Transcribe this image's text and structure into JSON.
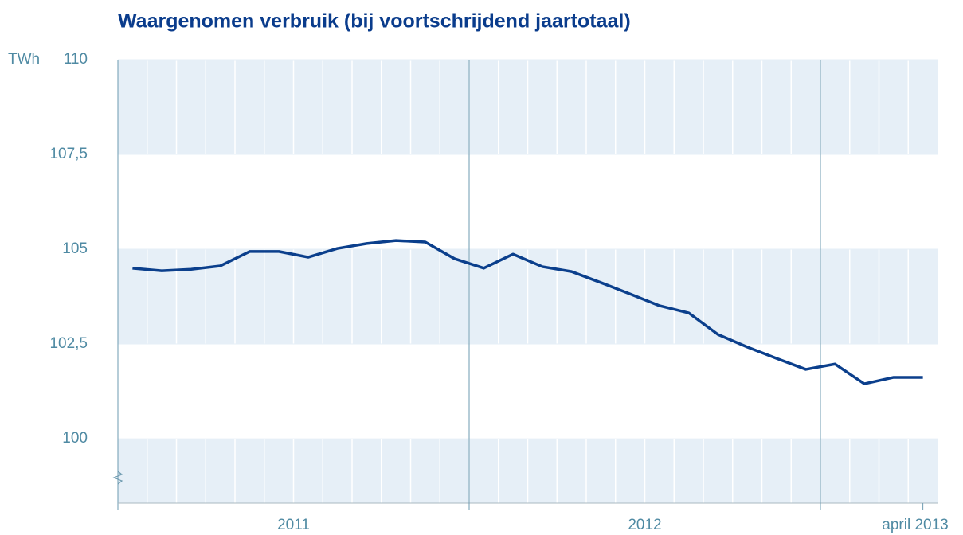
{
  "chart_data": {
    "type": "line",
    "title": "Waargenomen verbruik (bij voortschrijdend jaartotaal)",
    "y_unit": "TWh",
    "categories": [
      null,
      null,
      null,
      null,
      null,
      null,
      null,
      null,
      null,
      null,
      null,
      null,
      null,
      null,
      null,
      null,
      null,
      null,
      null,
      null,
      null,
      null,
      null,
      null,
      null,
      null,
      null,
      "april 2013"
    ],
    "groups": [
      {
        "label": "2011",
        "size": 12
      },
      {
        "label": "2012",
        "size": 12
      },
      {
        "label": null,
        "size": 4
      }
    ],
    "series": [
      {
        "name": null,
        "color": "#0b3f8c",
        "values": [
          104.5,
          104.43,
          104.47,
          104.56,
          104.94,
          104.94,
          104.79,
          105.02,
          105.15,
          105.23,
          105.19,
          104.75,
          104.5,
          104.87,
          104.54,
          104.41,
          104.12,
          103.82,
          103.51,
          103.32,
          102.75,
          102.42,
          102.12,
          101.83,
          101.97,
          101.45,
          101.62,
          101.62
        ]
      }
    ],
    "ylim": [
      98.3,
      110
    ],
    "yticks": [
      100,
      {
        "value": 102.5,
        "label": "102,5"
      },
      105,
      {
        "value": 107.5,
        "label": "107,5"
      },
      110
    ],
    "band_color": "#e6eff7",
    "divider_color": "#6e9bb0"
  }
}
